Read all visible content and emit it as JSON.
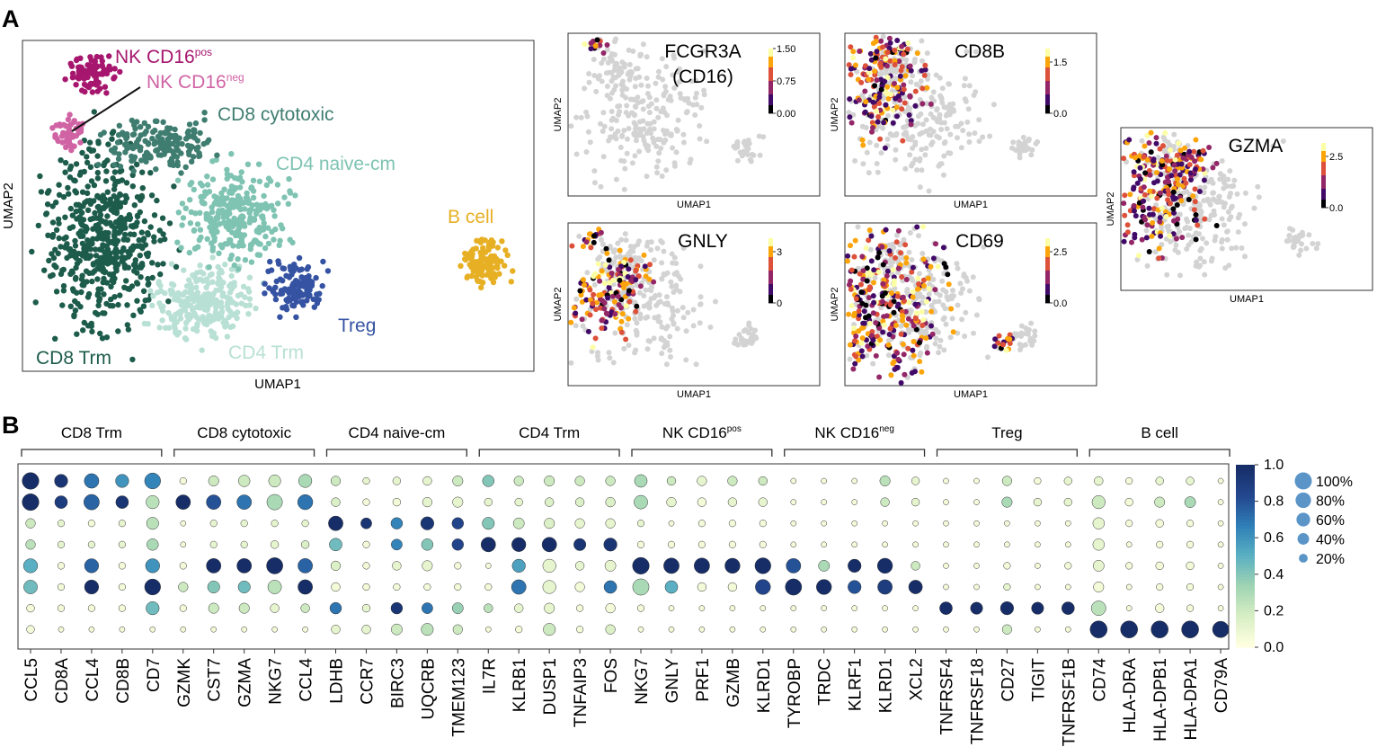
{
  "panel_labels": {
    "a": "A",
    "b": "B"
  },
  "umap_main": {
    "xlabel": "UMAP1",
    "ylabel": "UMAP2",
    "clusters": [
      {
        "name": "NK CD16",
        "sup": "pos",
        "color": "#a6166e"
      },
      {
        "name": "NK CD16",
        "sup": "neg",
        "color": "#d063a4"
      },
      {
        "name": "CD8 cytotoxic",
        "sup": "",
        "color": "#3f7d70"
      },
      {
        "name": "CD4 naive-cm",
        "sup": "",
        "color": "#7fc3b2"
      },
      {
        "name": "B cell",
        "sup": "",
        "color": "#e7b024"
      },
      {
        "name": "Treg",
        "sup": "",
        "color": "#3553a2"
      },
      {
        "name": "CD8 Trm",
        "sup": "",
        "color": "#1d5c4b"
      },
      {
        "name": "CD4 Trm",
        "sup": "",
        "color": "#b9e0d4"
      }
    ]
  },
  "feature_plots": [
    {
      "gene": "FCGR3A",
      "gene2": "(CD16)",
      "ticks": [
        "1.50",
        "0.75",
        "0.00"
      ],
      "xlabel": "UMAP1",
      "ylabel": "UMAP2"
    },
    {
      "gene": "CD8B",
      "gene2": "",
      "ticks": [
        "1.5",
        "0.0"
      ],
      "xlabel": "UMAP1",
      "ylabel": "UMAP2"
    },
    {
      "gene": "GNLY",
      "gene2": "",
      "ticks": [
        "3",
        "0"
      ],
      "xlabel": "UMAP1",
      "ylabel": "UMAP2"
    },
    {
      "gene": "CD69",
      "gene2": "",
      "ticks": [
        "2.5",
        "0.0"
      ],
      "xlabel": "UMAP1",
      "ylabel": "UMAP2"
    },
    {
      "gene": "GZMA",
      "gene2": "",
      "ticks": [
        "2.5",
        "0.0"
      ],
      "xlabel": "UMAP1",
      "ylabel": "UMAP2"
    }
  ],
  "chart_data": {
    "type": "dotplot",
    "title": "",
    "groups": [
      {
        "name": "CD8 Trm",
        "sup": "",
        "genes": [
          "CCL5",
          "CD8A",
          "CCL4",
          "CD8B",
          "CD7"
        ]
      },
      {
        "name": "CD8 cytotoxic",
        "sup": "",
        "genes": [
          "GZMK",
          "CST7",
          "GZMA",
          "NKG7",
          "CCL4"
        ]
      },
      {
        "name": "CD4 naive-cm",
        "sup": "",
        "genes": [
          "LDHB",
          "CCR7",
          "BIRC3",
          "UQCRB",
          "TMEM123"
        ]
      },
      {
        "name": "CD4 Trm",
        "sup": "",
        "genes": [
          "IL7R",
          "KLRB1",
          "DUSP1",
          "TNFAIP3",
          "FOS"
        ]
      },
      {
        "name": "NK CD16",
        "sup": "pos",
        "genes": [
          "NKG7",
          "GNLY",
          "PRF1",
          "GZMB",
          "KLRD1"
        ]
      },
      {
        "name": "NK CD16",
        "sup": "neg",
        "genes": [
          "TYROBP",
          "TRDC",
          "KLRF1",
          "KLRD1",
          "XCL2"
        ]
      },
      {
        "name": "Treg",
        "sup": "",
        "genes": [
          "TNFRSF4",
          "TNFRSF18",
          "CD27",
          "TIGIT",
          "TNFRSF1B"
        ]
      },
      {
        "name": "B cell",
        "sup": "",
        "genes": [
          "CD74",
          "HLA-DRA",
          "HLA-DPB1",
          "HLA-DPA1",
          "CD79A"
        ]
      }
    ],
    "rows": [
      "CD8 Trm",
      "CD8 cytotoxic",
      "CD4 naive-cm",
      "CD4 Trm",
      "NK CD16pos",
      "NK CD16neg",
      "Treg",
      "B cell"
    ],
    "size": [
      [
        95,
        55,
        70,
        55,
        85,
        10,
        30,
        40,
        45,
        55,
        25,
        10,
        15,
        20,
        30,
        40,
        25,
        30,
        25,
        25,
        50,
        20,
        25,
        25,
        20,
        5,
        5,
        5,
        30,
        15,
        5,
        5,
        25,
        10,
        15,
        20,
        10,
        15,
        15,
        5
      ],
      [
        95,
        50,
        80,
        50,
        55,
        70,
        70,
        70,
        80,
        75,
        20,
        10,
        15,
        25,
        30,
        15,
        15,
        20,
        20,
        25,
        60,
        25,
        20,
        20,
        20,
        5,
        5,
        5,
        20,
        15,
        5,
        5,
        30,
        15,
        15,
        55,
        15,
        30,
        35,
        5
      ],
      [
        25,
        10,
        10,
        10,
        45,
        5,
        10,
        10,
        10,
        10,
        70,
        35,
        40,
        55,
        40,
        45,
        35,
        30,
        25,
        25,
        10,
        5,
        10,
        10,
        10,
        5,
        5,
        5,
        5,
        5,
        5,
        5,
        5,
        5,
        5,
        40,
        10,
        15,
        10,
        5
      ],
      [
        25,
        10,
        10,
        10,
        40,
        5,
        10,
        10,
        15,
        15,
        50,
        10,
        35,
        40,
        40,
        70,
        65,
        70,
        45,
        55,
        10,
        10,
        10,
        10,
        10,
        5,
        5,
        5,
        5,
        5,
        5,
        5,
        5,
        5,
        5,
        40,
        5,
        10,
        10,
        5
      ],
      [
        65,
        10,
        65,
        10,
        65,
        10,
        70,
        70,
        90,
        70,
        25,
        10,
        20,
        30,
        10,
        5,
        55,
        55,
        20,
        35,
        95,
        80,
        80,
        75,
        85,
        70,
        35,
        55,
        75,
        20,
        5,
        5,
        10,
        5,
        10,
        35,
        10,
        15,
        15,
        5
      ],
      [
        60,
        10,
        65,
        10,
        85,
        25,
        45,
        45,
        60,
        70,
        20,
        10,
        10,
        10,
        10,
        10,
        70,
        55,
        25,
        50,
        90,
        50,
        20,
        20,
        75,
        90,
        75,
        55,
        70,
        60,
        5,
        5,
        10,
        5,
        5,
        30,
        5,
        10,
        10,
        5
      ],
      [
        15,
        10,
        10,
        10,
        55,
        10,
        30,
        30,
        20,
        20,
        40,
        15,
        40,
        35,
        35,
        20,
        20,
        30,
        10,
        25,
        10,
        5,
        5,
        5,
        5,
        5,
        5,
        5,
        5,
        5,
        50,
        45,
        55,
        45,
        50,
        70,
        5,
        20,
        10,
        5
      ],
      [
        15,
        5,
        5,
        5,
        5,
        5,
        5,
        5,
        5,
        5,
        20,
        20,
        35,
        45,
        25,
        5,
        10,
        45,
        10,
        25,
        5,
        5,
        5,
        5,
        5,
        5,
        5,
        5,
        5,
        5,
        5,
        5,
        25,
        5,
        5,
        100,
        100,
        100,
        100,
        90
      ]
    ],
    "expr": [
      [
        1.0,
        0.95,
        0.7,
        0.6,
        0.65,
        0.05,
        0.2,
        0.2,
        0.2,
        0.3,
        0.2,
        0.1,
        0.1,
        0.1,
        0.2,
        0.4,
        0.2,
        0.2,
        0.2,
        0.2,
        0.3,
        0.2,
        0.1,
        0.2,
        0.2,
        0.05,
        0.05,
        0.05,
        0.25,
        0.1,
        0.05,
        0.05,
        0.2,
        0.05,
        0.1,
        0.1,
        0.05,
        0.1,
        0.1,
        0.05
      ],
      [
        1.0,
        0.9,
        0.75,
        0.95,
        0.25,
        1.0,
        0.8,
        0.7,
        0.3,
        0.7,
        0.15,
        0.05,
        0.05,
        0.1,
        0.1,
        0.1,
        0.1,
        0.15,
        0.15,
        0.15,
        0.3,
        0.1,
        0.05,
        0.1,
        0.1,
        0.05,
        0.05,
        0.05,
        0.2,
        0.1,
        0.05,
        0.05,
        0.3,
        0.1,
        0.1,
        0.2,
        0.05,
        0.2,
        0.3,
        0.05
      ],
      [
        0.2,
        0.1,
        0.05,
        0.1,
        0.25,
        0.05,
        0.1,
        0.1,
        0.1,
        0.1,
        1.0,
        0.95,
        0.65,
        0.95,
        0.85,
        0.4,
        0.2,
        0.15,
        0.1,
        0.1,
        0.1,
        0.05,
        0.05,
        0.05,
        0.05,
        0.05,
        0.05,
        0.05,
        0.05,
        0.05,
        0.05,
        0.05,
        0.05,
        0.05,
        0.05,
        0.1,
        0.05,
        0.05,
        0.05,
        0.05
      ],
      [
        0.25,
        0.1,
        0.1,
        0.1,
        0.3,
        0.05,
        0.1,
        0.1,
        0.1,
        0.15,
        0.45,
        0.05,
        0.65,
        0.4,
        0.85,
        1.0,
        1.0,
        1.0,
        0.95,
        0.95,
        0.05,
        0.05,
        0.05,
        0.05,
        0.05,
        0.05,
        0.05,
        0.05,
        0.05,
        0.05,
        0.05,
        0.05,
        0.05,
        0.05,
        0.05,
        0.1,
        0.05,
        0.05,
        0.05,
        0.05
      ],
      [
        0.5,
        0.05,
        0.75,
        0.05,
        0.6,
        0.05,
        1.0,
        1.0,
        1.0,
        0.75,
        0.15,
        0.05,
        0.1,
        0.1,
        0.05,
        0.05,
        0.55,
        0.1,
        0.1,
        0.1,
        1.0,
        1.0,
        1.0,
        1.0,
        1.0,
        0.8,
        0.3,
        1.0,
        1.0,
        0.2,
        0.05,
        0.05,
        0.05,
        0.05,
        0.05,
        0.1,
        0.05,
        0.05,
        0.05,
        0.05
      ],
      [
        0.45,
        0.05,
        1.0,
        0.05,
        1.0,
        0.2,
        0.4,
        0.45,
        0.25,
        1.0,
        0.05,
        0.05,
        0.05,
        0.05,
        0.05,
        0.05,
        0.7,
        0.1,
        0.05,
        0.7,
        0.3,
        0.5,
        0.05,
        0.05,
        0.85,
        1.0,
        1.0,
        0.8,
        0.9,
        1.0,
        0.05,
        0.05,
        0.1,
        0.05,
        0.05,
        0.05,
        0.05,
        0.05,
        0.05,
        0.05
      ],
      [
        0.05,
        0.05,
        0.05,
        0.05,
        0.45,
        0.05,
        0.2,
        0.2,
        0.1,
        0.2,
        0.7,
        0.1,
        0.95,
        0.7,
        0.35,
        0.25,
        0.1,
        0.1,
        0.05,
        0.05,
        0.05,
        0.05,
        0.05,
        0.05,
        0.05,
        0.05,
        0.05,
        0.05,
        0.05,
        0.05,
        1.0,
        1.0,
        1.0,
        1.0,
        1.0,
        0.25,
        0.05,
        0.05,
        0.05,
        0.05
      ],
      [
        0.05,
        0.05,
        0.05,
        0.05,
        0.05,
        0.05,
        0.05,
        0.05,
        0.05,
        0.05,
        0.1,
        0.1,
        0.2,
        0.25,
        0.2,
        0.05,
        0.05,
        0.2,
        0.05,
        0.15,
        0.05,
        0.05,
        0.05,
        0.05,
        0.05,
        0.05,
        0.05,
        0.05,
        0.05,
        0.05,
        0.05,
        0.05,
        0.2,
        0.05,
        0.05,
        1.0,
        1.0,
        1.0,
        1.0,
        1.0
      ]
    ],
    "colorbar_ticks": [
      "1.0",
      "0.8",
      "0.6",
      "0.4",
      "0.2",
      "0.0"
    ],
    "size_legend": [
      "100%",
      "80%",
      "60%",
      "40%",
      "20%"
    ],
    "colormap": [
      "#ffffe0",
      "#d7eec4",
      "#9fd4b2",
      "#5ab0c2",
      "#2f7fb8",
      "#23478f",
      "#162d67"
    ]
  }
}
